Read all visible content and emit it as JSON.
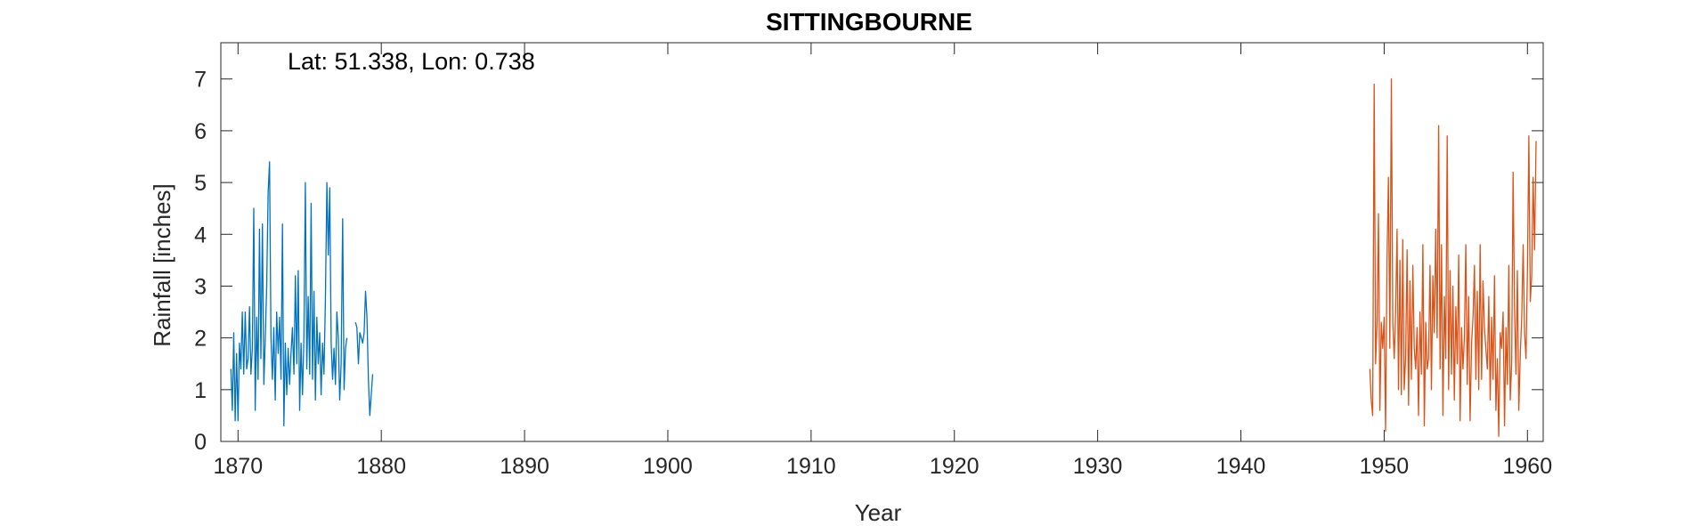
{
  "chart_data": {
    "type": "line",
    "title": "SITTINGBOURNE",
    "xlabel": "Year",
    "ylabel": "Rainfall [inches]",
    "annotation": "Lat: 51.338, Lon: 0.738",
    "xlim": [
      1868.8,
      1961.1
    ],
    "ylim": [
      0,
      7.7
    ],
    "xticks": [
      1870,
      1880,
      1890,
      1900,
      1910,
      1920,
      1930,
      1940,
      1950,
      1960
    ],
    "yticks": [
      0,
      1,
      2,
      3,
      4,
      5,
      6,
      7
    ],
    "grid": false,
    "series": [
      {
        "color": "#0072BD",
        "x": [
          1869.5,
          1869.6,
          1869.7,
          1869.8,
          1869.9,
          1870.0,
          1870.1,
          1870.2,
          1870.3,
          1870.4,
          1870.5,
          1870.6,
          1870.7,
          1870.8,
          1870.9,
          1871.0,
          1871.1,
          1871.2,
          1871.3,
          1871.4,
          1871.5,
          1871.6,
          1871.7,
          1871.8,
          1871.9,
          1872.0,
          1872.1,
          1872.2,
          1872.3,
          1872.4,
          1872.5,
          1872.6,
          1872.7,
          1872.8,
          1872.9,
          1873.0,
          1873.1,
          1873.2,
          1873.3,
          1873.4,
          1873.5,
          1873.6,
          1873.7,
          1873.8,
          1873.9,
          1874.0,
          1874.1,
          1874.2,
          1874.3,
          1874.4,
          1874.5,
          1874.6,
          1874.7,
          1874.8,
          1874.9,
          1875.0,
          1875.1,
          1875.2,
          1875.3,
          1875.4,
          1875.5,
          1875.6,
          1875.7,
          1875.8,
          1875.9,
          1876.0,
          1876.1,
          1876.2,
          1876.3,
          1876.4,
          1876.5,
          1876.6,
          1876.7,
          1876.8,
          1876.9,
          1877.0,
          1877.1,
          1877.2,
          1877.3,
          1877.4,
          1877.5,
          1877.6
        ],
        "y": [
          1.4,
          0.6,
          2.1,
          0.4,
          1.7,
          0.4,
          1.9,
          1.4,
          2.5,
          1.3,
          2.5,
          1.4,
          1.6,
          2.6,
          1.3,
          1.8,
          4.5,
          0.6,
          2.4,
          1.2,
          4.1,
          1.6,
          4.2,
          1.1,
          2.0,
          3.0,
          4.8,
          5.4,
          2.0,
          1.2,
          2.2,
          0.8,
          2.5,
          1.7,
          2.4,
          1.2,
          4.2,
          0.3,
          1.9,
          0.9,
          1.8,
          1.1,
          1.7,
          2.2,
          1.3,
          3.2,
          1.5,
          3.3,
          0.6,
          1.9,
          0.9,
          2.0,
          5.0,
          1.4,
          2.8,
          1.3,
          4.6,
          1.2,
          2.9,
          0.8,
          2.4,
          1.5,
          2.1,
          0.9,
          1.9,
          1.3,
          2.7,
          5.0,
          3.6,
          4.9,
          1.9,
          1.2,
          1.8,
          1.1,
          2.5,
          2.0,
          0.8,
          1.5,
          4.3,
          1.0,
          1.8,
          2.0
        ]
      },
      {
        "color": "#0072BD",
        "x": [
          1878.2,
          1878.3,
          1878.4,
          1878.5,
          1878.6,
          1878.7,
          1878.8,
          1878.9,
          1879.0,
          1879.1,
          1879.2,
          1879.3,
          1879.4
        ],
        "y": [
          2.3,
          2.2,
          1.5,
          2.1,
          2.0,
          1.9,
          2.1,
          2.9,
          2.4,
          1.2,
          0.5,
          0.9,
          1.3
        ]
      },
      {
        "color": "#D95319",
        "x": [
          1949.0,
          1949.1,
          1949.2,
          1949.3,
          1949.4,
          1949.5,
          1949.6,
          1949.7,
          1949.8,
          1949.9,
          1950.0,
          1950.1,
          1950.2,
          1950.3,
          1950.4,
          1950.5,
          1950.6,
          1950.7,
          1950.8,
          1950.9,
          1951.0,
          1951.1,
          1951.2,
          1951.3,
          1951.4,
          1951.5,
          1951.6,
          1951.7,
          1951.8,
          1951.9,
          1952.0,
          1952.1,
          1952.2,
          1952.3,
          1952.4,
          1952.5,
          1952.6,
          1952.7,
          1952.8,
          1952.9,
          1953.0,
          1953.1,
          1953.2,
          1953.3,
          1953.4,
          1953.5,
          1953.6,
          1953.7,
          1953.8,
          1953.9,
          1954.0,
          1954.1,
          1954.2,
          1954.3,
          1954.4,
          1954.5,
          1954.6,
          1954.7,
          1954.8,
          1954.9,
          1955.0,
          1955.1,
          1955.2,
          1955.3,
          1955.4,
          1955.5,
          1955.6,
          1955.7,
          1955.8,
          1955.9,
          1956.0,
          1956.1,
          1956.2,
          1956.3,
          1956.4,
          1956.5,
          1956.6,
          1956.7,
          1956.8,
          1956.9,
          1957.0,
          1957.1,
          1957.2,
          1957.3,
          1957.4,
          1957.5,
          1957.6,
          1957.7,
          1957.8,
          1957.9,
          1958.0,
          1958.1,
          1958.2,
          1958.3,
          1958.4,
          1958.5,
          1958.6,
          1958.7,
          1958.8,
          1958.9,
          1959.0,
          1959.1,
          1959.2,
          1959.3,
          1959.4,
          1959.5,
          1959.6,
          1959.7,
          1959.8,
          1959.9,
          1960.0,
          1960.1,
          1960.2,
          1960.3,
          1960.4,
          1960.5,
          1960.6
        ],
        "y": [
          1.4,
          0.8,
          0.5,
          6.9,
          1.5,
          2.3,
          4.4,
          0.6,
          2.3,
          1.8,
          2.4,
          0.2,
          3.5,
          5.1,
          1.8,
          7.0,
          2.3,
          1.6,
          2.5,
          4.1,
          1.0,
          3.5,
          0.9,
          3.9,
          1.0,
          1.6,
          3.7,
          0.7,
          3.1,
          1.2,
          3.4,
          1.8,
          1.4,
          2.2,
          0.5,
          2.5,
          1.3,
          3.8,
          0.3,
          2.3,
          1.4,
          1.6,
          3.4,
          1.0,
          3.2,
          2.1,
          4.1,
          2.0,
          6.1,
          1.4,
          3.8,
          0.5,
          2.8,
          1.6,
          5.9,
          1.0,
          3.3,
          1.3,
          3.0,
          0.8,
          2.6,
          1.5,
          3.6,
          0.4,
          2.2,
          1.4,
          2.0,
          3.8,
          1.1,
          2.8,
          0.4,
          1.9,
          2.4,
          3.4,
          1.2,
          2.9,
          1.0,
          3.8,
          1.2,
          3.1,
          2.2,
          1.8,
          1.4,
          2.8,
          0.8,
          2.4,
          1.2,
          3.2,
          0.6,
          1.6,
          0.1,
          2.1,
          1.8,
          2.5,
          0.3,
          2.2,
          1.1,
          3.4,
          0.8,
          1.5,
          5.2,
          2.6,
          1.3,
          3.3,
          0.6,
          1.7,
          2.4,
          3.8,
          2.1,
          1.6,
          3.3,
          5.9,
          2.7,
          3.2,
          5.1,
          3.7,
          5.8
        ]
      }
    ]
  }
}
